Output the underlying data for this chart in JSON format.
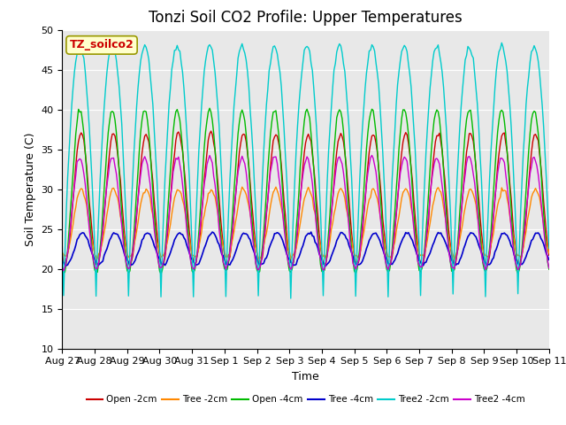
{
  "title": "Tonzi Soil CO2 Profile: Upper Temperatures",
  "xlabel": "Time",
  "ylabel": "Soil Temperature (C)",
  "ylim": [
    10,
    50
  ],
  "xlim": [
    0,
    360
  ],
  "xtick_labels": [
    "Aug 27",
    "Aug 28",
    "Aug 29",
    "Aug 30",
    "Aug 31",
    "Sep 1",
    "Sep 2",
    "Sep 3",
    "Sep 4",
    "Sep 5",
    "Sep 6",
    "Sep 7",
    "Sep 8",
    "Sep 9",
    "Sep 10",
    "Sep 11"
  ],
  "xtick_positions": [
    0,
    24,
    48,
    72,
    96,
    120,
    144,
    168,
    192,
    216,
    240,
    264,
    288,
    312,
    336,
    360
  ],
  "legend_labels": [
    "Open -2cm",
    "Tree -2cm",
    "Open -4cm",
    "Tree -4cm",
    "Tree2 -2cm",
    "Tree2 -4cm"
  ],
  "legend_colors": [
    "#cc0000",
    "#ff8800",
    "#00bb00",
    "#0000cc",
    "#00cccc",
    "#cc00cc"
  ],
  "annotation_text": "TZ_soilco2",
  "annotation_color": "#cc0000",
  "annotation_bg": "#ffffcc",
  "annotation_border": "#999900",
  "background_color": "#e8e8e8",
  "grid_color": "#ffffff",
  "title_fontsize": 12,
  "label_fontsize": 9,
  "tick_fontsize": 8
}
